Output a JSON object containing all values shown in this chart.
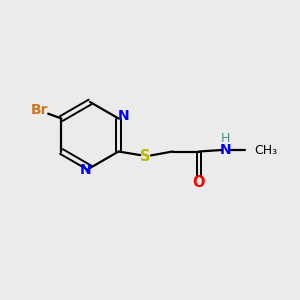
{
  "background_color": "#ebebeb",
  "bond_color": "#000000",
  "N_color": "#0000ff",
  "O_color": "#ff0000",
  "S_color": "#b8b800",
  "Br_color": "#cc7722",
  "NH_color": "#4a9090",
  "figsize": [
    3.0,
    3.0
  ],
  "dpi": 100,
  "xlim": [
    0,
    10
  ],
  "ylim": [
    0,
    10
  ]
}
